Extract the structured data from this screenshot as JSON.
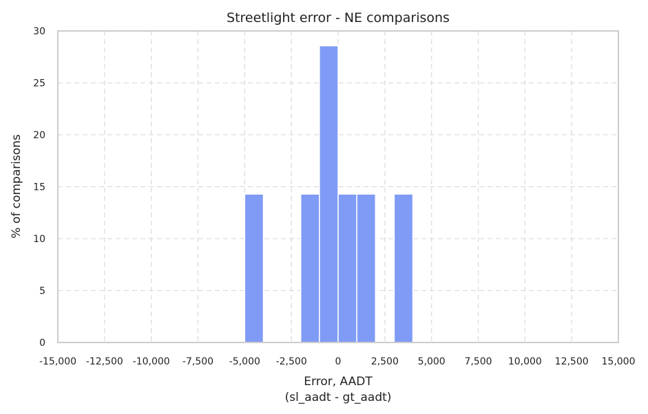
{
  "chart_data": {
    "type": "bar",
    "title": "Streetlight error - NE comparisons",
    "xlabel": "Error, AADT",
    "xlabel_line2": "(sl_aadt - gt_aadt)",
    "ylabel": "% of comparisons",
    "xlim": [
      -15000,
      15000
    ],
    "ylim": [
      0,
      30
    ],
    "xticks": [
      -15000,
      -12500,
      -10000,
      -7500,
      -5000,
      -2500,
      0,
      2500,
      5000,
      7500,
      10000,
      12500,
      15000
    ],
    "xtick_labels": [
      "-15,000",
      "-12,500",
      "-10,000",
      "-7,500",
      "-5,000",
      "-2,500",
      "0",
      "2,500",
      "5,000",
      "7,500",
      "10,000",
      "12,500",
      "15,000"
    ],
    "yticks": [
      0,
      5,
      10,
      15,
      20,
      25,
      30
    ],
    "ytick_labels": [
      "0",
      "5",
      "10",
      "15",
      "20",
      "25",
      "30"
    ],
    "grid": true,
    "bar_color": "#7f9bf5",
    "bars": [
      {
        "x0": -5000,
        "x1": -4000,
        "value": 14.29
      },
      {
        "x0": -2000,
        "x1": -1000,
        "value": 14.29
      },
      {
        "x0": -1000,
        "x1": 0,
        "value": 28.57
      },
      {
        "x0": 0,
        "x1": 1000,
        "value": 14.29
      },
      {
        "x0": 1000,
        "x1": 2000,
        "value": 14.29
      },
      {
        "x0": 3000,
        "x1": 4000,
        "value": 14.29
      }
    ]
  }
}
